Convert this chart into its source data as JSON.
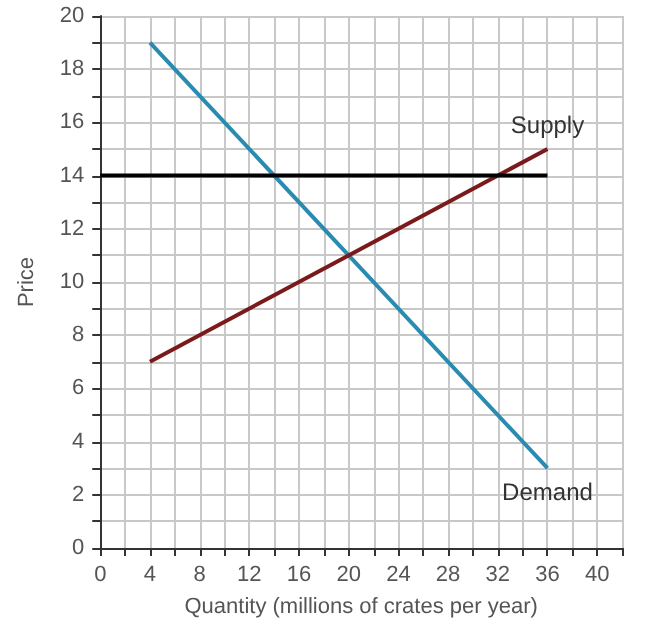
{
  "chart_data": {
    "type": "line",
    "xlabel": "Quantity (millions of crates per year)",
    "ylabel": "Price",
    "series": [
      {
        "name": "Demand",
        "color": "#2a8bb0",
        "x": [
          4,
          36
        ],
        "values": [
          19,
          3
        ]
      },
      {
        "name": "Supply",
        "color": "#7a1a1a",
        "x": [
          4,
          36
        ],
        "values": [
          7,
          15
        ]
      },
      {
        "color": "#000000",
        "x": [
          0,
          36
        ],
        "values": [
          14,
          14
        ]
      }
    ],
    "xlim": [
      0,
      42
    ],
    "ylim": [
      0,
      20
    ],
    "xticks": [
      0,
      {
        "value": 2,
        "label": null
      },
      4,
      {
        "value": 6,
        "label": null
      },
      8,
      {
        "value": 10,
        "label": null
      },
      12,
      {
        "value": 14,
        "label": null
      },
      16,
      {
        "value": 18,
        "label": null
      },
      20,
      {
        "value": 22,
        "label": null
      },
      24,
      {
        "value": 26,
        "label": null
      },
      28,
      {
        "value": 30,
        "label": null
      },
      32,
      {
        "value": 34,
        "label": null
      },
      36,
      {
        "value": 38,
        "label": null
      },
      40,
      {
        "value": 42,
        "label": null
      }
    ],
    "yticks": [
      0,
      {
        "value": 1,
        "label": null
      },
      2,
      {
        "value": 3,
        "label": null
      },
      4,
      {
        "value": 5,
        "label": null
      },
      6,
      {
        "value": 7,
        "label": null
      },
      8,
      {
        "value": 9,
        "label": null
      },
      10,
      {
        "value": 11,
        "label": null
      },
      12,
      {
        "value": 13,
        "label": null
      },
      14,
      {
        "value": 15,
        "label": null
      },
      16,
      {
        "value": 17,
        "label": null
      },
      18,
      {
        "value": 19,
        "label": null
      },
      20
    ],
    "grid": true,
    "legend": false,
    "marker": "none"
  }
}
